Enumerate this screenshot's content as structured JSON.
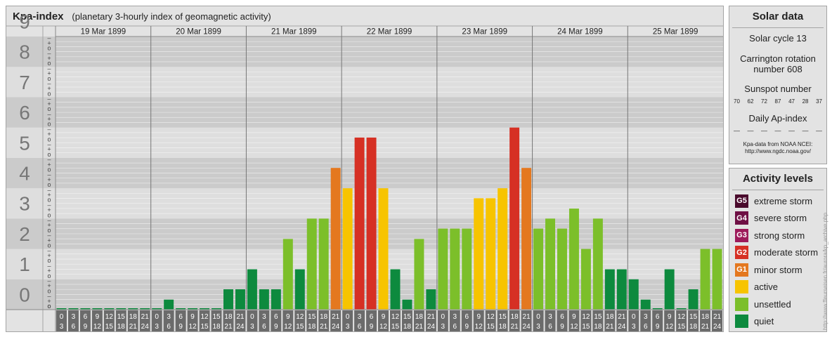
{
  "chart_data": {
    "type": "bar",
    "title": "Kpa-index",
    "subtitle": "(planetary 3-hourly index of geomagnetic activity)",
    "ylim": [
      0,
      9
    ],
    "y_ticks": [
      "0",
      "1",
      "2",
      "3",
      "4",
      "5",
      "6",
      "7",
      "8",
      "9"
    ],
    "minor_ticks": [
      "o",
      "+",
      "–",
      "o",
      "+",
      "–"
    ],
    "days": [
      "19 Mar 1899",
      "20 Mar 1899",
      "21 Mar 1899",
      "22 Mar 1899",
      "23 Mar 1899",
      "24 Mar 1899",
      "25 Mar 1899"
    ],
    "interval_start": [
      "0",
      "3",
      "6",
      "9",
      "12",
      "15",
      "18",
      "21"
    ],
    "interval_end": [
      "3",
      "6",
      "9",
      "12",
      "15",
      "18",
      "21",
      "24"
    ],
    "values": [
      0.0,
      0.0,
      0.0,
      0.0,
      0.0,
      0.0,
      0.0,
      0.0,
      0.0,
      0.33,
      0.0,
      0.0,
      0.0,
      0.0,
      0.67,
      0.67,
      1.33,
      0.67,
      0.67,
      2.33,
      1.33,
      3.0,
      3.0,
      4.67,
      4.0,
      5.67,
      5.67,
      4.0,
      1.33,
      0.33,
      2.33,
      0.67,
      2.67,
      2.67,
      2.67,
      3.67,
      3.67,
      4.0,
      6.0,
      4.67,
      2.67,
      3.0,
      2.67,
      3.33,
      2.0,
      3.0,
      1.33,
      1.33,
      1.0,
      0.33,
      0.0,
      1.33,
      0.0,
      0.67,
      2.0,
      2.0
    ],
    "level_colors": {
      "quiet": "#0d8a3e",
      "unsettled": "#7cbf2a",
      "active": "#f7c400",
      "G1": "#e4781f",
      "G2": "#d63024",
      "G3": "#9d1a5a",
      "G4": "#6e0f44",
      "G5": "#4a0a2c"
    }
  },
  "solar": {
    "heading": "Solar data",
    "cycle": "Solar cycle 13",
    "carrington_1": "Carrington rotation",
    "carrington_2": "number 608",
    "sunspot_label": "Sunspot number",
    "sunspots": [
      "70",
      "62",
      "72",
      "87",
      "47",
      "28",
      "37"
    ],
    "ap_label": "Daily Ap-index",
    "ap_values": [
      "––",
      "––",
      "––",
      "––",
      "––",
      "––",
      "––"
    ],
    "note_1": "Kpa-data from NOAA NCEI:",
    "note_2": "http://www.ngdc.noaa.gov/"
  },
  "activity": {
    "heading": "Activity levels",
    "levels": [
      {
        "code": "G5",
        "label": "extreme storm",
        "color": "#4a0a2c"
      },
      {
        "code": "G4",
        "label": "severe storm",
        "color": "#6e0f44"
      },
      {
        "code": "G3",
        "label": "strong storm",
        "color": "#9d1a5a"
      },
      {
        "code": "G2",
        "label": "moderate storm",
        "color": "#d63024"
      },
      {
        "code": "G1",
        "label": "minor storm",
        "color": "#e4781f"
      },
      {
        "code": "",
        "label": "active",
        "color": "#f7c400"
      },
      {
        "code": "",
        "label": "unsettled",
        "color": "#7cbf2a"
      },
      {
        "code": "",
        "label": "quiet",
        "color": "#0d8a3e"
      }
    ]
  },
  "credit": "http://www.ffeurseisen.fr/aurora/kp_archive.php"
}
